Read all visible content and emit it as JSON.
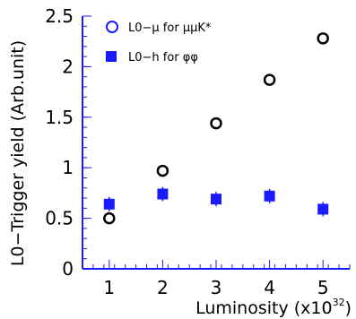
{
  "chart_data": {
    "type": "scatter",
    "xlabel": "Luminosity (x10",
    "xlabel_exponent": "32",
    "xlabel_suffix": ")",
    "ylabel": "L0−Trigger yield (Arb.unit)",
    "xlim": [
      0.5,
      5.5
    ],
    "ylim": [
      0,
      2.5
    ],
    "x_ticks": [
      1,
      2,
      3,
      4,
      5
    ],
    "y_ticks": [
      0,
      0.5,
      1,
      1.5,
      2,
      2.5
    ],
    "y_tick_labels": [
      "0",
      "0.5",
      "1",
      "1.5",
      "2",
      "2.5"
    ],
    "grid": false,
    "legend_position": "top-left",
    "series": [
      {
        "name": "L0−μ for μμK*",
        "marker": "open-circle",
        "color": "#000000",
        "legend_color": "#1a1aff",
        "x": [
          1,
          2,
          3,
          4,
          5
        ],
        "y": [
          0.5,
          0.97,
          1.44,
          1.87,
          2.28
        ]
      },
      {
        "name": "L0−h for φφ",
        "marker": "filled-square",
        "color": "#1a1aff",
        "x": [
          1,
          2,
          3,
          4,
          5
        ],
        "y": [
          0.64,
          0.74,
          0.69,
          0.72,
          0.59
        ]
      }
    ]
  }
}
